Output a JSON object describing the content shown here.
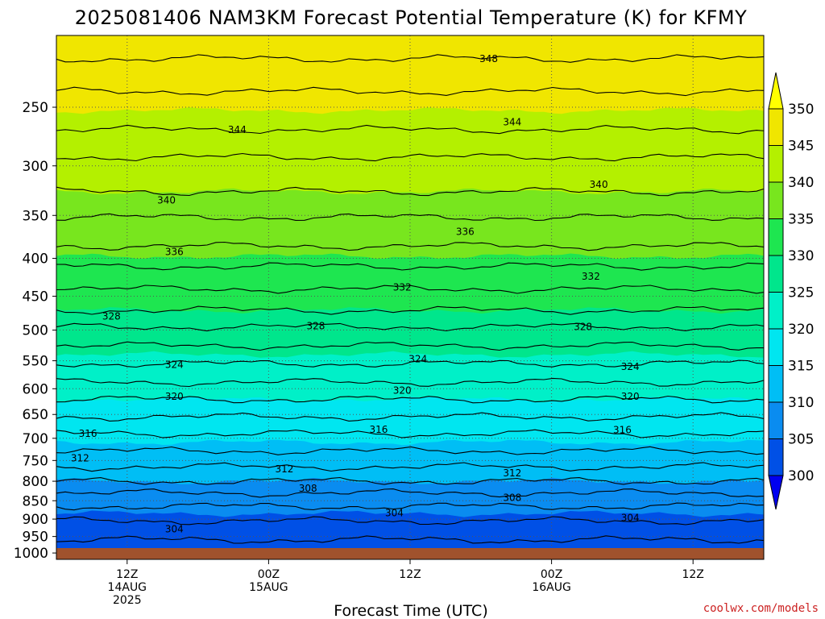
{
  "title": "2025081406 NAM3KM Forecast Potential Temperature (K) for KFMY",
  "credit": "coolwx.com/models",
  "credit_color": "#cc2222",
  "ground_color": "#a0522d",
  "chart_data": {
    "type": "heatmap",
    "title": "2025081406 NAM3KM Forecast Potential Temperature (K) for KFMY",
    "xlabel": "Forecast Time (UTC)",
    "ylabel": "",
    "y_scale": "log-pressure (inverted)",
    "ylim": [
      1020,
      200
    ],
    "y_ticks": [
      250,
      300,
      350,
      400,
      450,
      500,
      550,
      600,
      650,
      700,
      750,
      800,
      850,
      900,
      950,
      1000
    ],
    "x_ticks": [
      {
        "hour": 12,
        "lines": [
          "12Z",
          "14AUG",
          "2025"
        ]
      },
      {
        "hour": 30,
        "lines": [
          "00Z",
          "15AUG"
        ]
      },
      {
        "hour": 48,
        "lines": [
          "12Z"
        ]
      },
      {
        "hour": 66,
        "lines": [
          "00Z",
          "16AUG"
        ]
      },
      {
        "hour": 84,
        "lines": [
          "12Z"
        ]
      }
    ],
    "xlim": [
      3,
      93
    ],
    "grid": true,
    "colorbar": {
      "levels": [
        300,
        305,
        310,
        315,
        320,
        325,
        330,
        335,
        340,
        345,
        350
      ],
      "colors": [
        "#0000f0",
        "#0050e6",
        "#0a8cf0",
        "#00bef5",
        "#00e6f0",
        "#00f0c8",
        "#00e68c",
        "#1ee650",
        "#78e61e",
        "#b4f000",
        "#f0e600",
        "#ffff00"
      ]
    },
    "contour_interval": 2,
    "isentropes": [
      {
        "theta": 348,
        "p": 215
      },
      {
        "theta": 346,
        "p": 238
      },
      {
        "theta": 344,
        "p": 268
      },
      {
        "theta": 342,
        "p": 292
      },
      {
        "theta": 340,
        "p": 325
      },
      {
        "theta": 338,
        "p": 352
      },
      {
        "theta": 336,
        "p": 385
      },
      {
        "theta": 334,
        "p": 410
      },
      {
        "theta": 332,
        "p": 440
      },
      {
        "theta": 330,
        "p": 470
      },
      {
        "theta": 328,
        "p": 495
      },
      {
        "theta": 326,
        "p": 525
      },
      {
        "theta": 324,
        "p": 555
      },
      {
        "theta": 322,
        "p": 588
      },
      {
        "theta": 320,
        "p": 620
      },
      {
        "theta": 318,
        "p": 655
      },
      {
        "theta": 316,
        "p": 690
      },
      {
        "theta": 314,
        "p": 728
      },
      {
        "theta": 312,
        "p": 765
      },
      {
        "theta": 310,
        "p": 800
      },
      {
        "theta": 308,
        "p": 830
      },
      {
        "theta": 306,
        "p": 865
      },
      {
        "theta": 304,
        "p": 905
      },
      {
        "theta": 302,
        "p": 960
      }
    ],
    "contour_labels": [
      {
        "text": "348",
        "hour": 58,
        "p": 215
      },
      {
        "text": "344",
        "hour": 26,
        "p": 268
      },
      {
        "text": "344",
        "hour": 61,
        "p": 262
      },
      {
        "text": "340",
        "hour": 17,
        "p": 334
      },
      {
        "text": "340",
        "hour": 72,
        "p": 318
      },
      {
        "text": "336",
        "hour": 18,
        "p": 392
      },
      {
        "text": "336",
        "hour": 55,
        "p": 368
      },
      {
        "text": "332",
        "hour": 47,
        "p": 438
      },
      {
        "text": "332",
        "hour": 71,
        "p": 423
      },
      {
        "text": "328",
        "hour": 10,
        "p": 479
      },
      {
        "text": "328",
        "hour": 36,
        "p": 494
      },
      {
        "text": "328",
        "hour": 70,
        "p": 495
      },
      {
        "text": "324",
        "hour": 18,
        "p": 557
      },
      {
        "text": "324",
        "hour": 49,
        "p": 547
      },
      {
        "text": "324",
        "hour": 76,
        "p": 560
      },
      {
        "text": "320",
        "hour": 18,
        "p": 615
      },
      {
        "text": "320",
        "hour": 47,
        "p": 603
      },
      {
        "text": "320",
        "hour": 76,
        "p": 615
      },
      {
        "text": "316",
        "hour": 7,
        "p": 690
      },
      {
        "text": "316",
        "hour": 44,
        "p": 681
      },
      {
        "text": "316",
        "hour": 75,
        "p": 682
      },
      {
        "text": "312",
        "hour": 6,
        "p": 745
      },
      {
        "text": "312",
        "hour": 32,
        "p": 770
      },
      {
        "text": "312",
        "hour": 61,
        "p": 780
      },
      {
        "text": "308",
        "hour": 35,
        "p": 818
      },
      {
        "text": "308",
        "hour": 61,
        "p": 842
      },
      {
        "text": "304",
        "hour": 18,
        "p": 928
      },
      {
        "text": "304",
        "hour": 46,
        "p": 883
      },
      {
        "text": "304",
        "hour": 76,
        "p": 896
      }
    ]
  }
}
